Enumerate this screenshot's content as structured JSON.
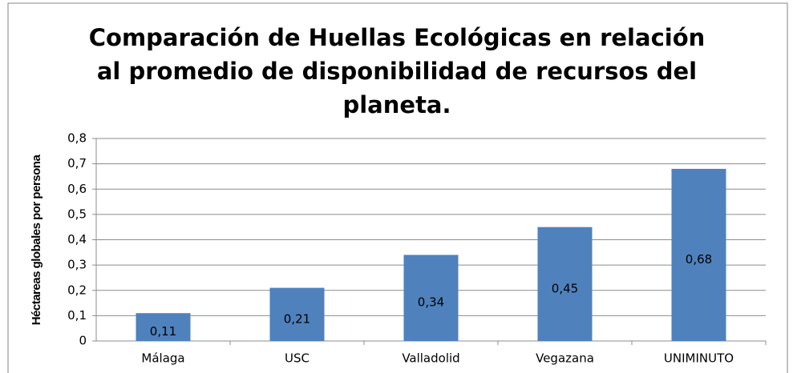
{
  "chart_data": {
    "type": "bar",
    "title": "Comparación de Huellas Ecológicas en relación al promedio de disponibilidad de recursos del planeta.",
    "y_label": "Héctareas globales por persona",
    "categories": [
      "Málaga",
      "USC",
      "Valladolid",
      "Vegazana",
      "UNIMINUTO"
    ],
    "values": [
      0.11,
      0.21,
      0.34,
      0.45,
      0.68
    ],
    "value_labels": [
      "0,11",
      "0,21",
      "0,34",
      "0,45",
      "0,68"
    ],
    "color": "#4f81bd",
    "ylim": [
      0,
      0.8
    ],
    "yticks": [
      0,
      {
        "value": 0.1,
        "label": "0,1"
      },
      {
        "value": 0.2,
        "label": "0,2"
      },
      {
        "value": 0.3,
        "label": "0,3"
      },
      {
        "value": 0.4,
        "label": "0,4"
      },
      {
        "value": 0.5,
        "label": "0,5"
      },
      {
        "value": 0.6,
        "label": "0,6"
      },
      {
        "value": 0.7,
        "label": "0,7"
      },
      {
        "value": 0.8,
        "label": "0,8"
      }
    ],
    "grid": true
  }
}
